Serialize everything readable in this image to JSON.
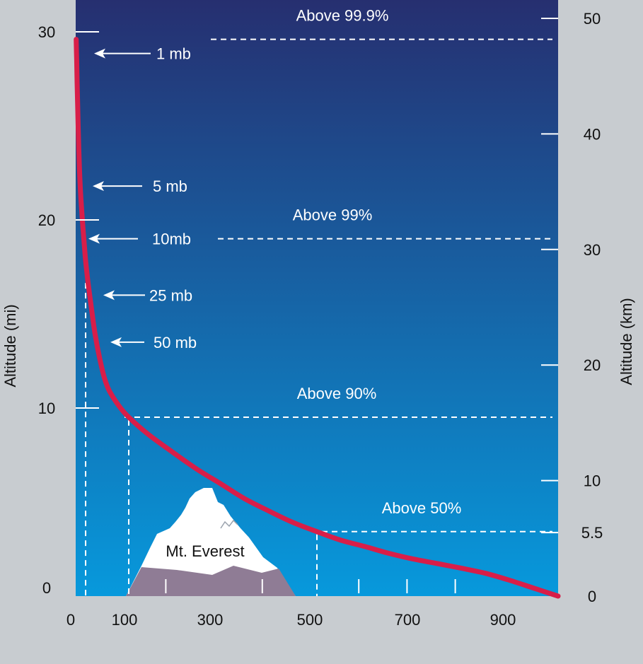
{
  "chart_data": {
    "type": "line",
    "title": "",
    "xlabel": "",
    "ylabel_left": "Altitude (mi)",
    "ylabel_right": "Altitude (km)",
    "xlim": [
      0,
      1000
    ],
    "ylim_mi": [
      0,
      30
    ],
    "ylim_km": [
      0,
      50
    ],
    "x_ticks": [
      0,
      100,
      300,
      500,
      700,
      900
    ],
    "x_minor_ticks": [
      200,
      300,
      400,
      600,
      700,
      800
    ],
    "y_ticks_mi": [
      0,
      10,
      20,
      30
    ],
    "y_ticks_km": [
      0,
      5.5,
      10,
      20,
      30,
      40,
      50
    ],
    "y_tick_labels_km": [
      "0",
      "5.5",
      "10",
      "20",
      "30",
      "40",
      "50"
    ],
    "series": [
      {
        "color": "#d81e49",
        "points": [
          [
            1000,
            0
          ],
          [
            950,
            0.42
          ],
          [
            900,
            0.84
          ],
          [
            850,
            1.21
          ],
          [
            800,
            1.48
          ],
          [
            750,
            1.73
          ],
          [
            700,
            1.97
          ],
          [
            650,
            2.27
          ],
          [
            600,
            2.63
          ],
          [
            550,
            2.97
          ],
          [
            500,
            3.43
          ],
          [
            450,
            3.92
          ],
          [
            400,
            4.53
          ],
          [
            350,
            5.18
          ],
          [
            300,
            5.98
          ],
          [
            250,
            6.77
          ],
          [
            200,
            7.67
          ],
          [
            150,
            8.61
          ],
          [
            110,
            9.51
          ],
          [
            90,
            10.1
          ],
          [
            70,
            10.9
          ],
          [
            60,
            11.56
          ],
          [
            50,
            12.6
          ],
          [
            40,
            13.95
          ],
          [
            30,
            15.8
          ],
          [
            25,
            16.8
          ],
          [
            20,
            18.0
          ],
          [
            15,
            19.6
          ],
          [
            10,
            21.5
          ],
          [
            7,
            23.3
          ],
          [
            5,
            25.1
          ],
          [
            3,
            27.3
          ],
          [
            2,
            28.5
          ],
          [
            1,
            29.6
          ]
        ]
      }
    ],
    "pressure_labels": [
      {
        "text": "1 mb",
        "altitude_mi": 29.6
      },
      {
        "text": "5 mb",
        "altitude_mi": 21.8
      },
      {
        "text": "10mb",
        "altitude_mi": 19.0
      },
      {
        "text": "25 mb",
        "altitude_mi": 16.0
      },
      {
        "text": "50 mb",
        "altitude_mi": 13.5
      }
    ],
    "percent_levels": [
      {
        "text": "Above 99.9%",
        "altitude_mi": 29.6
      },
      {
        "text": "Above 99%",
        "altitude_mi": 19.0
      },
      {
        "text": "Above 90%",
        "altitude_mi": 9.51
      },
      {
        "text": "Above 50%",
        "altitude_mi": 3.43
      }
    ],
    "vertical_markers": [
      {
        "x": 25,
        "altitude_mi": 16.8
      },
      {
        "x": 110,
        "altitude_mi": 9.51
      },
      {
        "x": 500,
        "altitude_mi": 3.43
      }
    ],
    "annotation": {
      "text": "Mt. Everest"
    },
    "colors": {
      "sky_top": "#262f70",
      "sky_bottom": "#0799dc",
      "curve": "#d81e49",
      "mountain_rock": "#8f7c95",
      "snow": "#ffffff",
      "background": "#c8ccd0"
    }
  }
}
